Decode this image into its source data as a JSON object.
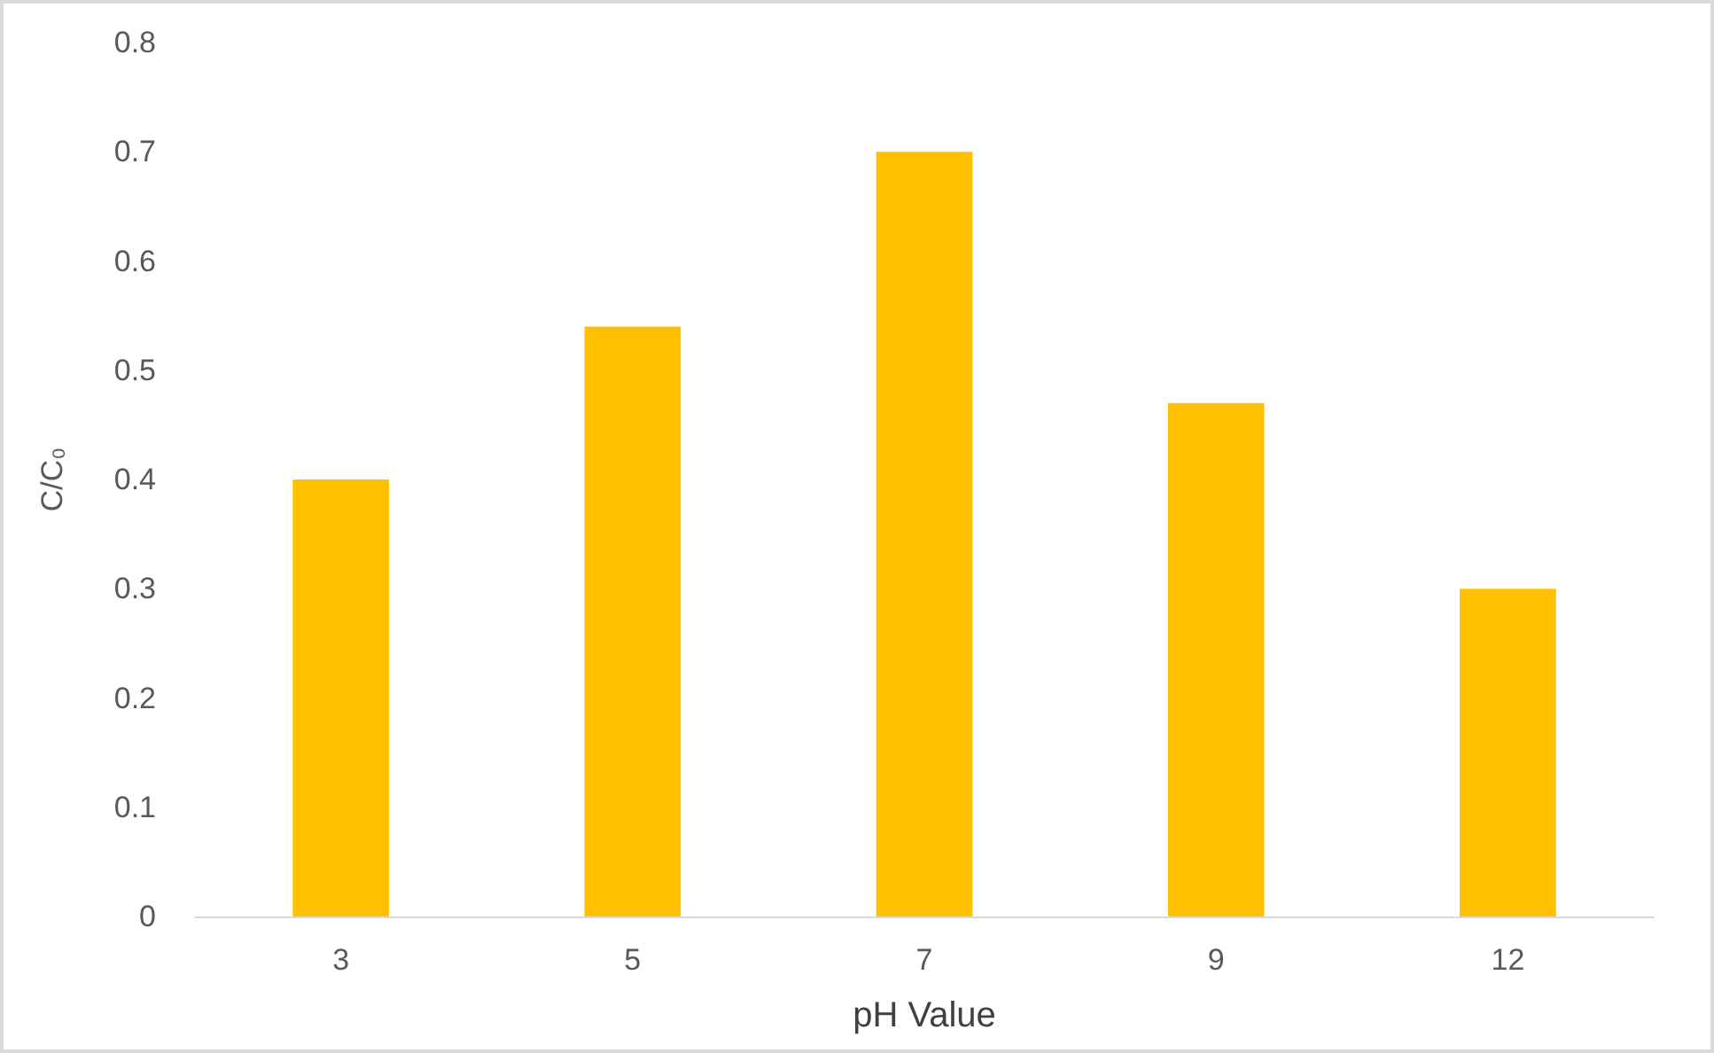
{
  "chart_data": {
    "type": "bar",
    "xlabel": "pH Value",
    "ylabel": "C/C₀",
    "categories": [
      "3",
      "5",
      "7",
      "9",
      "12"
    ],
    "values": [
      0.4,
      0.54,
      0.7,
      0.47,
      0.3
    ],
    "color": "#ffc000",
    "ylim": [
      0,
      0.8
    ],
    "yticks": [
      0,
      0.1,
      0.2,
      0.3,
      0.4,
      0.5,
      0.6,
      0.7,
      0.8
    ],
    "grid": false
  }
}
